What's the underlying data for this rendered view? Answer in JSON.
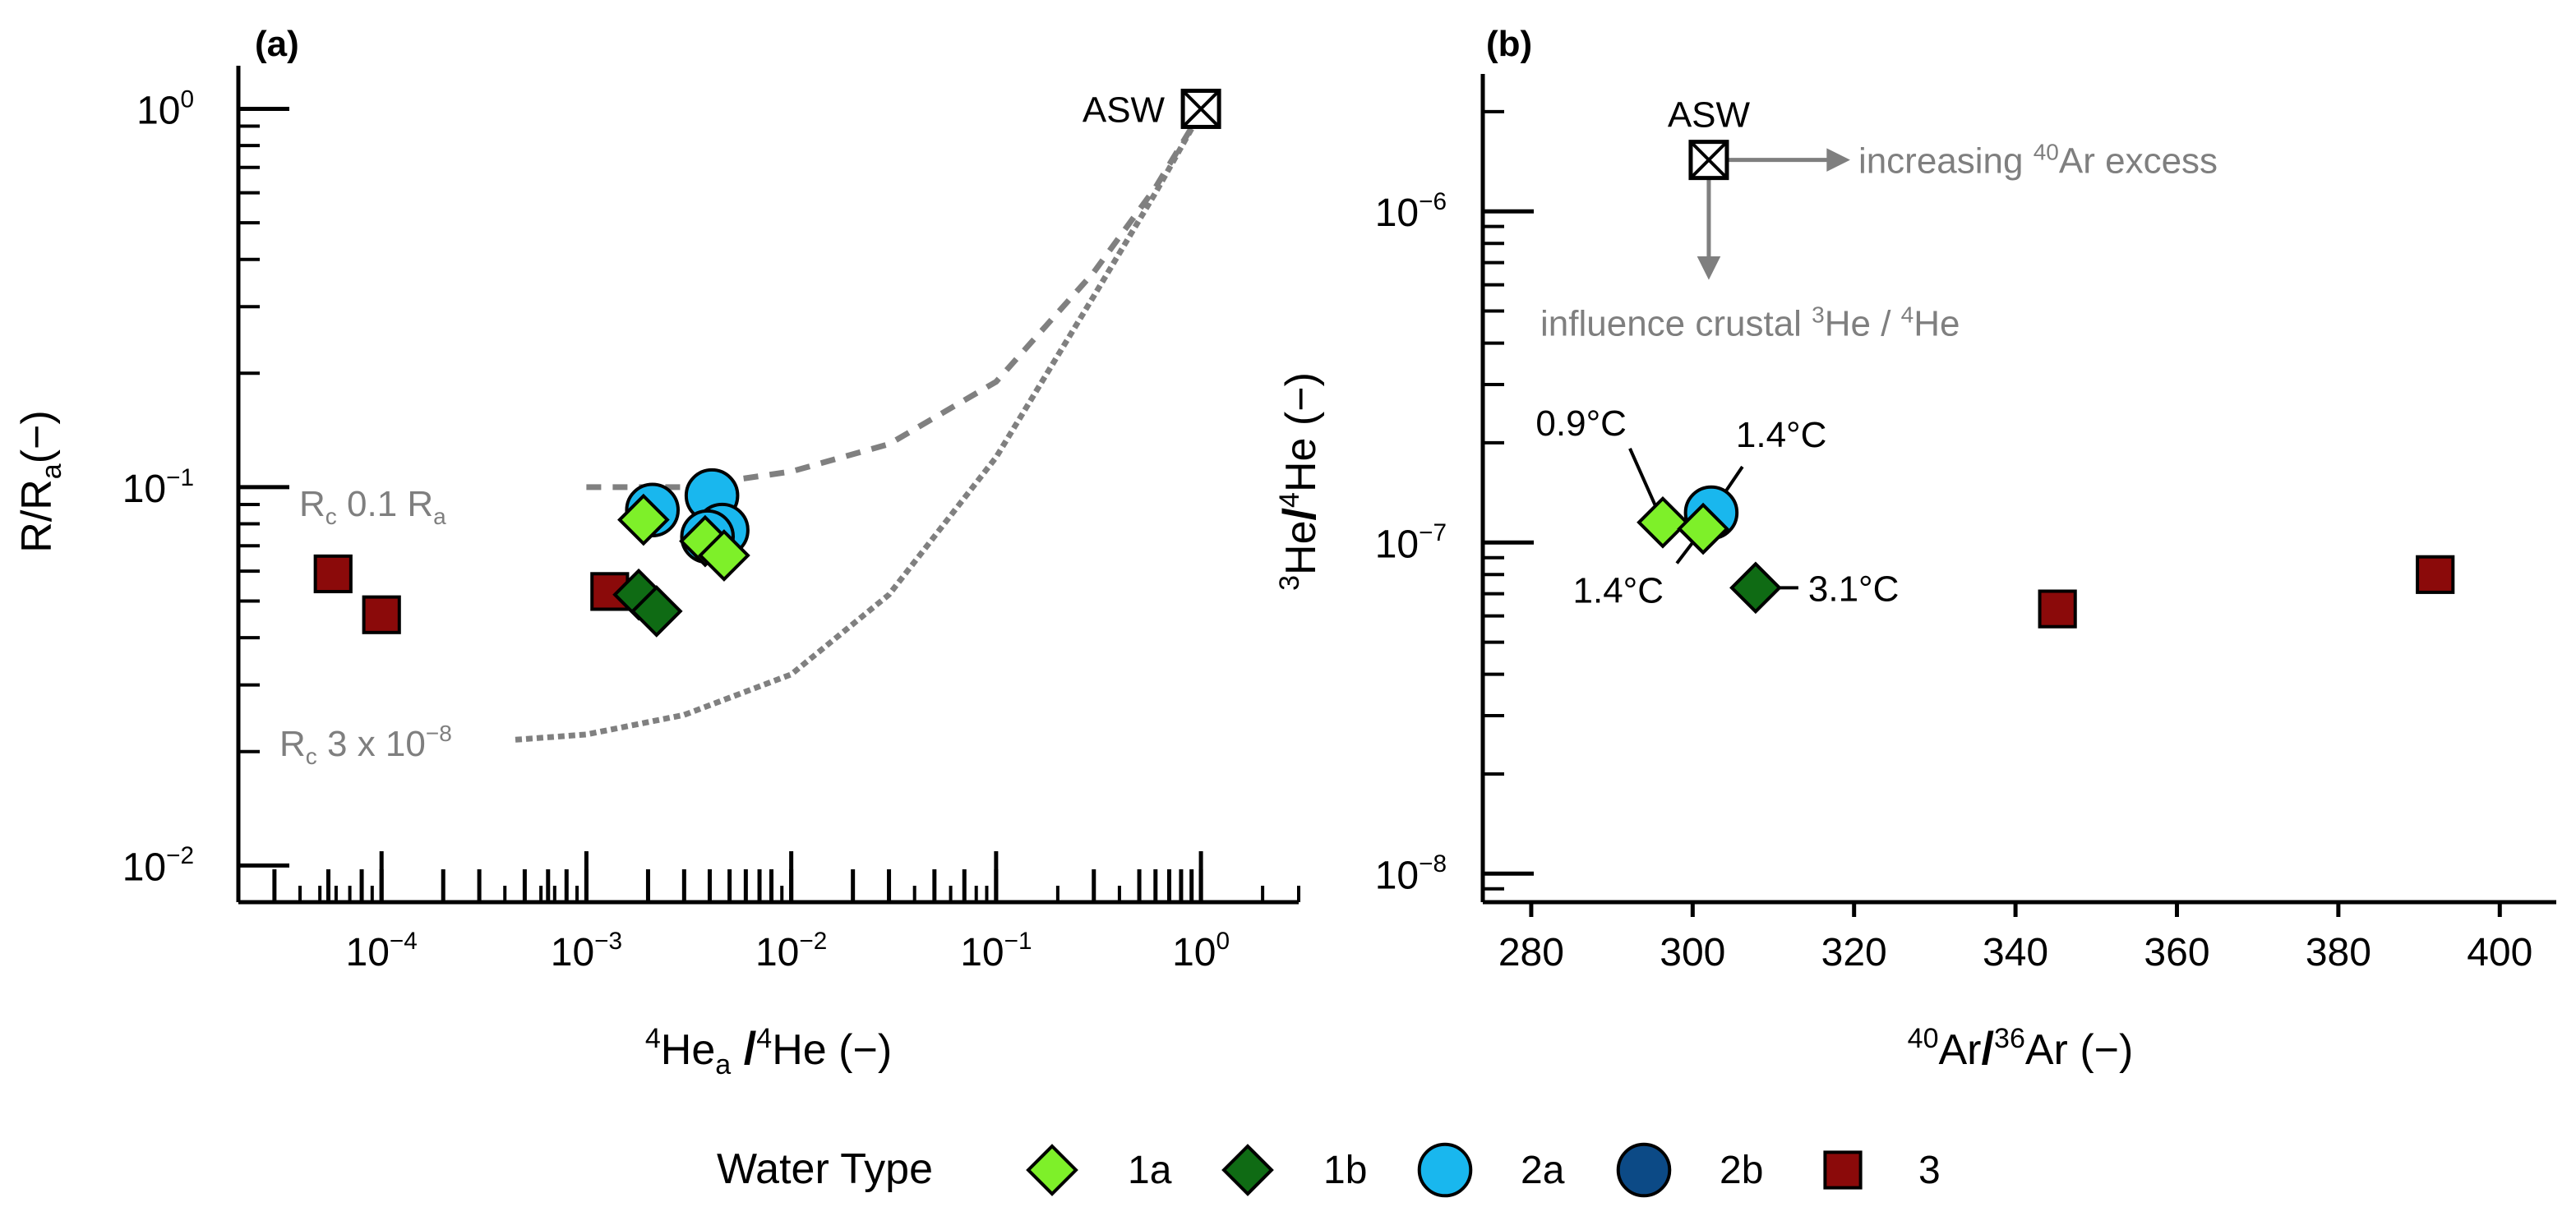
{
  "chart_data": [
    {
      "panel": "(a)",
      "type": "scatter",
      "xlabel": {
        "main": "He",
        "sup1": "4",
        "sub": "a",
        "sep": "/",
        "sup2": "4",
        "rest": "He (−)"
      },
      "ylabel": {
        "main": "R/R",
        "sub": "a",
        "rest": "(−)"
      },
      "xscale": "log",
      "yscale": "log",
      "xlim": [
        2e-05,
        3
      ],
      "ylim": [
        0.008,
        1.3
      ],
      "xticks": [
        {
          "v": 0.0001,
          "label": "10",
          "exp": "−4"
        },
        {
          "v": 0.001,
          "label": "10",
          "exp": "−3"
        },
        {
          "v": 0.01,
          "label": "10",
          "exp": "−2"
        },
        {
          "v": 0.1,
          "label": "10",
          "exp": "−1"
        },
        {
          "v": 1,
          "label": "10",
          "exp": "0"
        }
      ],
      "yticks": [
        {
          "v": 0.01,
          "label": "10",
          "exp": "−2"
        },
        {
          "v": 0.1,
          "label": "10",
          "exp": "−1"
        },
        {
          "v": 1,
          "label": "10",
          "exp": "0"
        }
      ],
      "annotations": {
        "asw": {
          "label": "ASW",
          "x": 1,
          "y": 1
        },
        "curve1": {
          "pre": "R",
          "sub": "c",
          "post": " 0.1 R",
          "sub2": "a"
        },
        "curve2": {
          "pre": "R",
          "sub": "c",
          "post": " 3 x 10",
          "sup": "−8"
        }
      },
      "curves": [
        {
          "name": "Rc 0.1 Ra",
          "points": [
            [
              0.001,
              0.1
            ],
            [
              0.003,
              0.1
            ],
            [
              0.01,
              0.11
            ],
            [
              0.03,
              0.13
            ],
            [
              0.1,
              0.19
            ],
            [
              0.3,
              0.37
            ],
            [
              0.6,
              0.62
            ],
            [
              1,
              0.98
            ]
          ]
        },
        {
          "name": "Rc 3 x 10^-8",
          "points": [
            [
              0.00045,
              0.0215
            ],
            [
              0.001,
              0.0222
            ],
            [
              0.003,
              0.025
            ],
            [
              0.01,
              0.032
            ],
            [
              0.03,
              0.052
            ],
            [
              0.1,
              0.12
            ],
            [
              0.3,
              0.32
            ],
            [
              0.6,
              0.6
            ],
            [
              1,
              0.98
            ]
          ]
        }
      ],
      "series": [
        {
          "name": "1a",
          "marker": "diamond",
          "color": "#7ef029",
          "points": [
            [
              0.0019,
              0.082
            ],
            [
              0.0038,
              0.072
            ],
            [
              0.0047,
              0.066
            ]
          ]
        },
        {
          "name": "1b",
          "marker": "diamond",
          "color": "#0f6b14",
          "points": [
            [
              0.0018,
              0.052
            ],
            [
              0.0022,
              0.047
            ]
          ]
        },
        {
          "name": "2a",
          "marker": "circle",
          "color": "#19b7ee",
          "points": [
            [
              0.0021,
              0.087
            ],
            [
              0.0041,
              0.095
            ],
            [
              0.0046,
              0.077
            ],
            [
              0.0039,
              0.074
            ]
          ]
        },
        {
          "name": "2b",
          "marker": "circle",
          "color": "#0c4a86",
          "points": []
        },
        {
          "name": "3",
          "marker": "square",
          "color": "#8b0a0a",
          "points": [
            [
              5.8e-05,
              0.059
            ],
            [
              0.0001,
              0.046
            ],
            [
              0.0013,
              0.053
            ]
          ]
        }
      ],
      "xdata_points": [
        3e-05,
        5.5e-05,
        8e-05,
        0.0001,
        0.0002,
        0.0003,
        0.0005,
        0.00065,
        0.0008,
        0.001,
        0.002,
        0.003,
        0.004,
        0.005,
        0.006,
        0.007,
        0.008,
        0.01,
        0.02,
        0.03,
        0.05,
        0.07,
        0.1,
        0.3,
        0.5,
        0.6,
        0.7,
        0.8,
        0.9,
        1
      ]
    },
    {
      "panel": "(b)",
      "type": "scatter",
      "xlabel": {
        "sup1": "40",
        "main": "Ar",
        "sep": "/",
        "sup2": "36",
        "rest": "Ar (−)"
      },
      "ylabel": {
        "sup1": "3",
        "main": "He",
        "sep": "/",
        "sup2": "4",
        "rest": "He (−)"
      },
      "xscale": "linear",
      "yscale": "log",
      "xlim": [
        274,
        407
      ],
      "ylim": [
        8.2e-09,
        2.6e-06
      ],
      "xticks": [
        {
          "v": 280,
          "label": "280"
        },
        {
          "v": 300,
          "label": "300"
        },
        {
          "v": 320,
          "label": "320"
        },
        {
          "v": 340,
          "label": "340"
        },
        {
          "v": 360,
          "label": "360"
        },
        {
          "v": 380,
          "label": "380"
        },
        {
          "v": 400,
          "label": "400"
        }
      ],
      "yticks": [
        {
          "v": 1e-08,
          "label": "10",
          "exp": "−8"
        },
        {
          "v": 1e-07,
          "label": "10",
          "exp": "−7"
        },
        {
          "v": 1e-06,
          "label": "10",
          "exp": "−6"
        }
      ],
      "annotations": {
        "asw": {
          "label": "ASW",
          "x": 302,
          "y": 1.43e-06
        },
        "arrow_right": {
          "pre": "increasing ",
          "sup": "40",
          "post": "Ar excess"
        },
        "arrow_down": {
          "pre": "influence crustal ",
          "sup1": "3",
          "mid": "He / ",
          "sup2": "4",
          "post": "He"
        },
        "temps": [
          {
            "label": "0.9°C",
            "for": "1a-1"
          },
          {
            "label": "1.4°C",
            "for": "2a-1"
          },
          {
            "label": "1.4°C",
            "for": "1a-2"
          },
          {
            "label": "3.1°C",
            "for": "1b-1"
          }
        ]
      },
      "series": [
        {
          "name": "1a",
          "marker": "diamond",
          "color": "#7ef029",
          "points": [
            [
              296.3,
              1.15e-07
            ],
            [
              301.3,
              1.1e-07
            ]
          ]
        },
        {
          "name": "1b",
          "marker": "diamond",
          "color": "#0f6b14",
          "points": [
            [
              307.8,
              7.3e-08
            ]
          ]
        },
        {
          "name": "2a",
          "marker": "circle",
          "color": "#19b7ee",
          "points": [
            [
              302.3,
              1.23e-07
            ]
          ]
        },
        {
          "name": "2b",
          "marker": "circle",
          "color": "#0c4a86",
          "points": []
        },
        {
          "name": "3",
          "marker": "square",
          "color": "#8b0a0a",
          "points": [
            [
              345.2,
              6.3e-08
            ],
            [
              392.0,
              8e-08
            ]
          ]
        }
      ]
    }
  ],
  "legend": {
    "title": "Water Type",
    "items": [
      {
        "label": "1a",
        "marker": "diamond",
        "color": "#7ef029"
      },
      {
        "label": "1b",
        "marker": "diamond",
        "color": "#0f6b14"
      },
      {
        "label": "2a",
        "marker": "circle",
        "color": "#19b7ee"
      },
      {
        "label": "2b",
        "marker": "circle",
        "color": "#0c4a86"
      },
      {
        "label": "3",
        "marker": "square",
        "color": "#8b0a0a"
      }
    ]
  },
  "colors": {
    "axis": "#000000",
    "annotation": "#7f7f7f",
    "curve": "#808080"
  }
}
